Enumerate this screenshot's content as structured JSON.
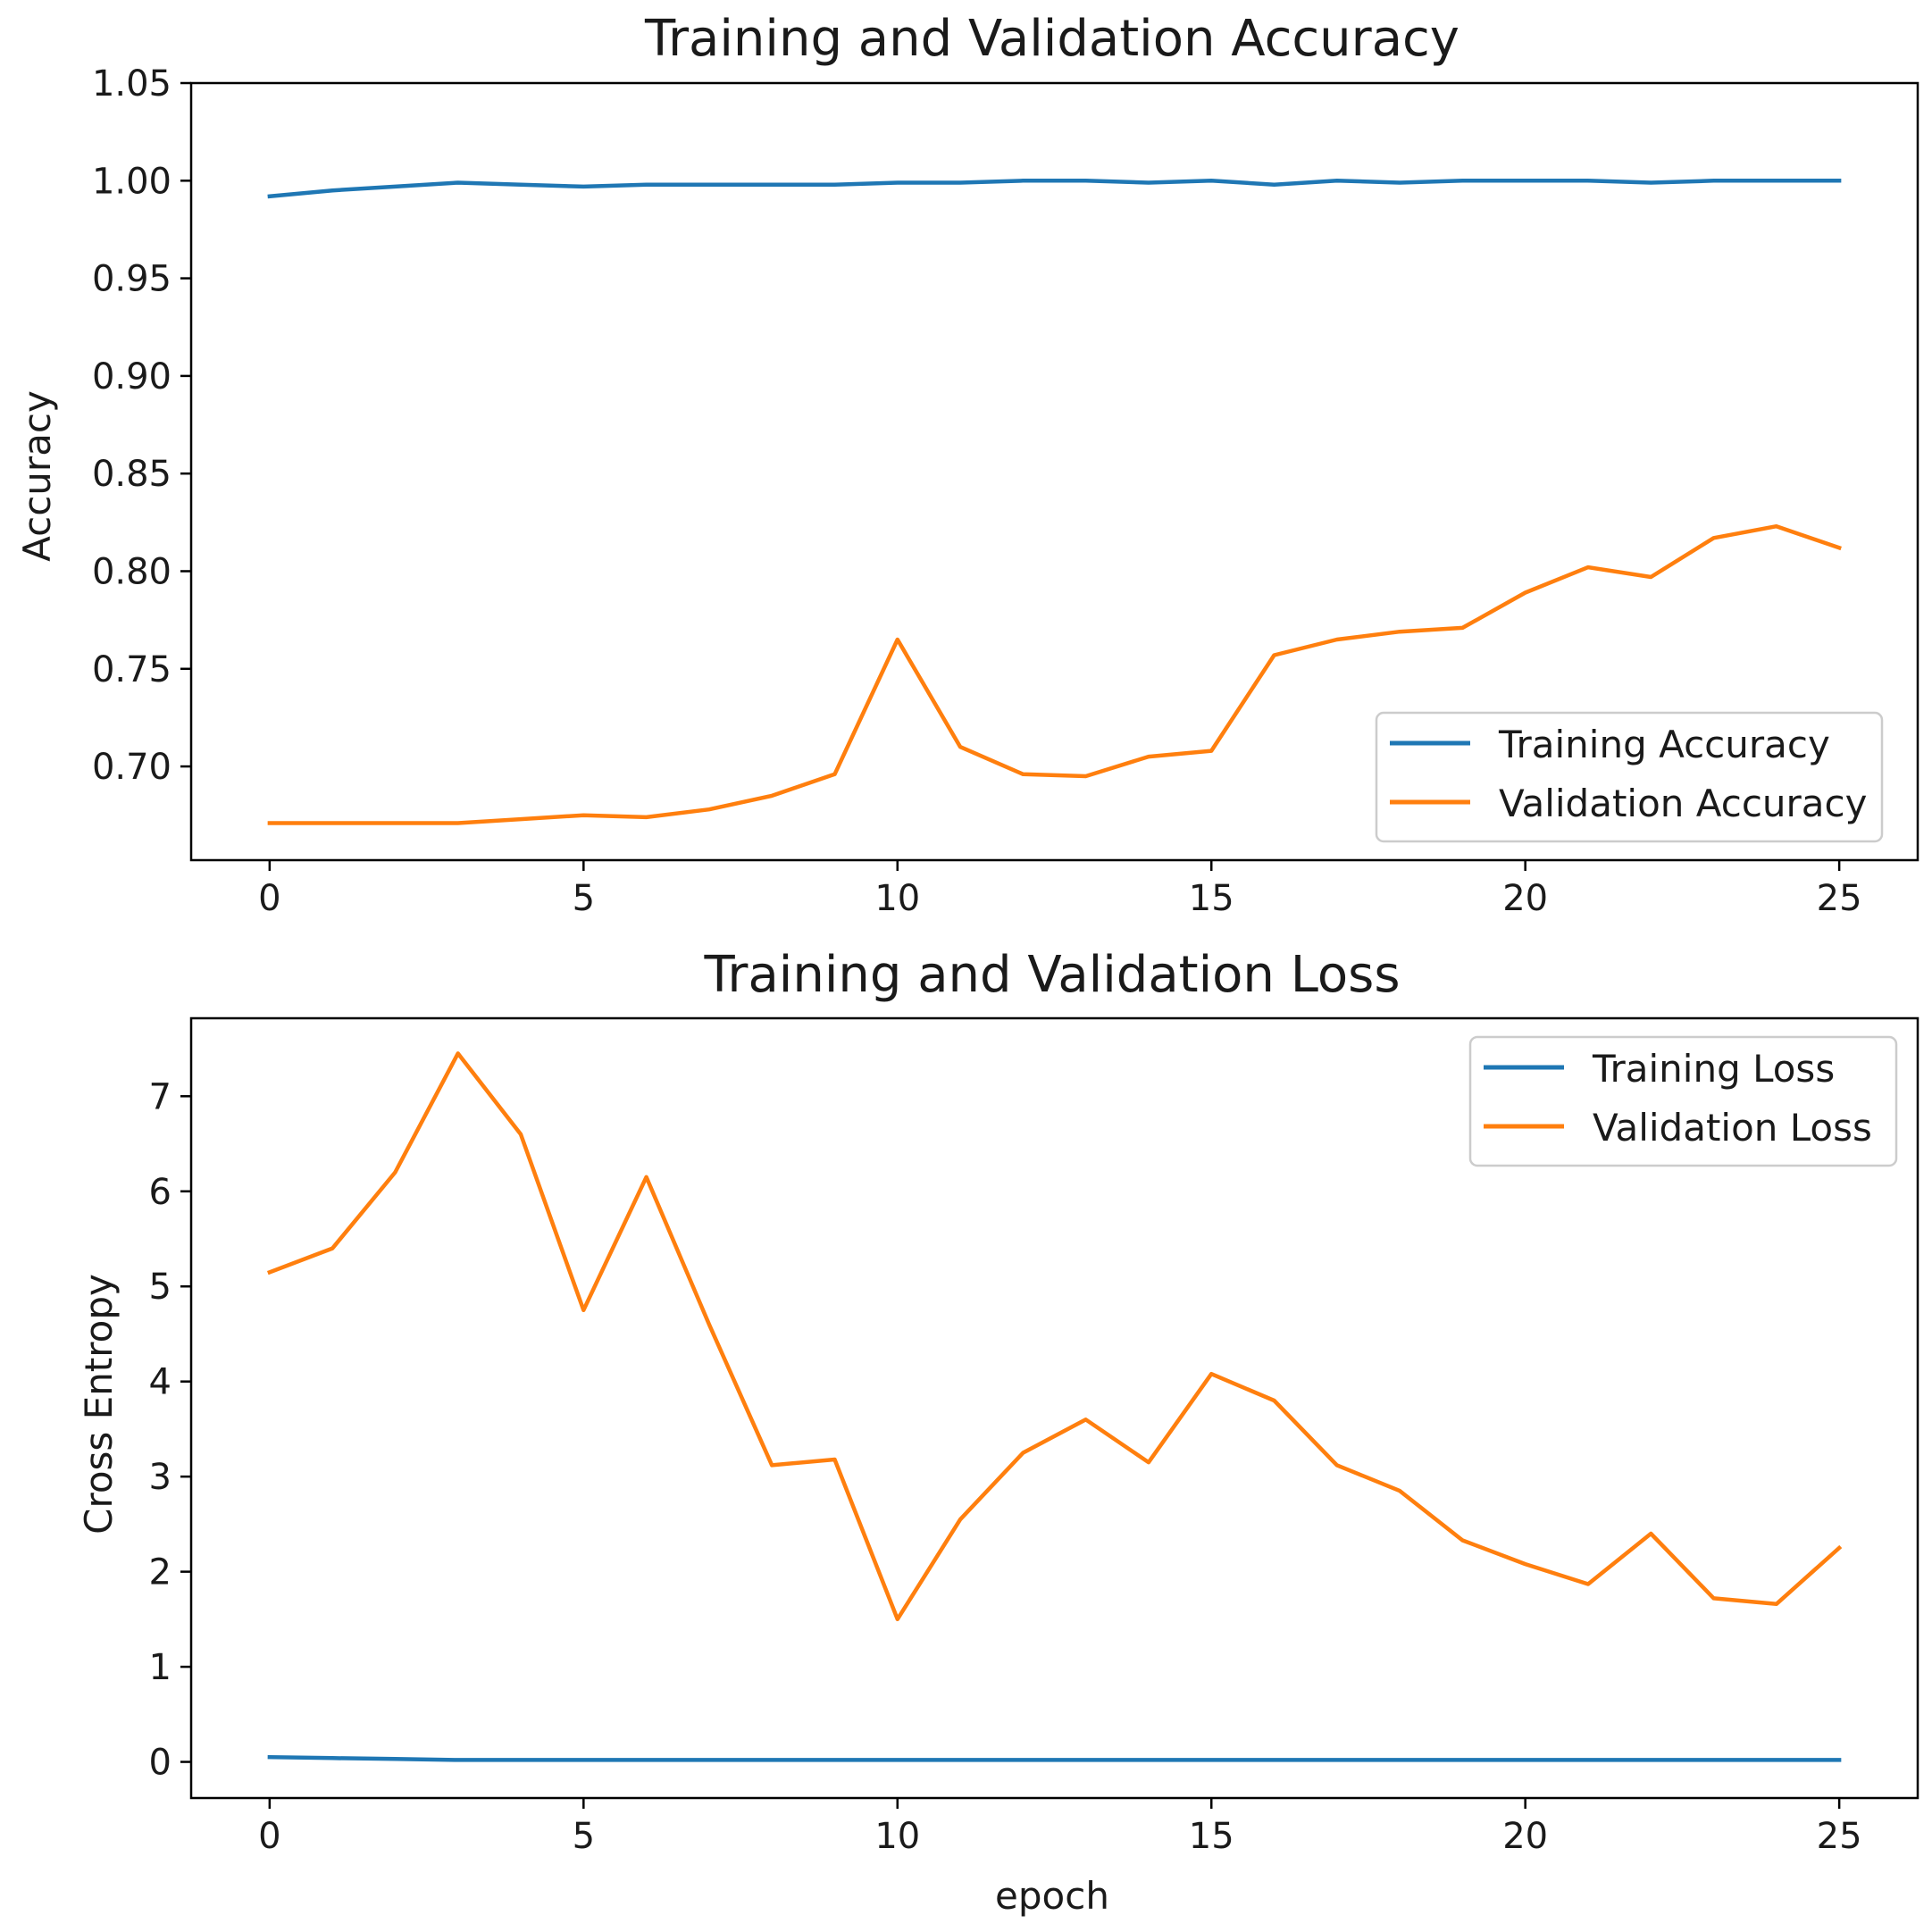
{
  "colors": {
    "training": "#1f77b4",
    "validation": "#ff7f0e",
    "axis": "#000000",
    "legend_border": "#cccccc"
  },
  "chart_data": [
    {
      "type": "line",
      "title": "Training and Validation Accuracy",
      "xlabel": "",
      "ylabel": "Accuracy",
      "xlim": [
        -1.25,
        26.25
      ],
      "ylim": [
        0.652,
        1.05
      ],
      "xticks": [
        0,
        5,
        10,
        15,
        20,
        25
      ],
      "xtick_labels": [
        "0",
        "5",
        "10",
        "15",
        "20",
        "25"
      ],
      "yticks": [
        0.7,
        0.75,
        0.8,
        0.85,
        0.9,
        0.95,
        1.0,
        1.05
      ],
      "ytick_labels": [
        "0.70",
        "0.75",
        "0.80",
        "0.85",
        "0.90",
        "0.95",
        "1.00",
        "1.05"
      ],
      "legend_position": "lower-right",
      "x": [
        0,
        1,
        2,
        3,
        4,
        5,
        6,
        7,
        8,
        9,
        10,
        11,
        12,
        13,
        14,
        15,
        16,
        17,
        18,
        19,
        20,
        21,
        22,
        23,
        24,
        25
      ],
      "series": [
        {
          "name": "Training Accuracy",
          "color_key": "training",
          "values": [
            0.992,
            0.995,
            0.997,
            0.999,
            0.998,
            0.997,
            0.998,
            0.998,
            0.998,
            0.998,
            0.999,
            0.999,
            1.0,
            1.0,
            0.999,
            1.0,
            0.998,
            1.0,
            0.999,
            1.0,
            1.0,
            1.0,
            0.999,
            1.0,
            1.0,
            1.0
          ]
        },
        {
          "name": "Validation Accuracy",
          "color_key": "validation",
          "values": [
            0.671,
            0.671,
            0.671,
            0.671,
            0.673,
            0.675,
            0.674,
            0.678,
            0.685,
            0.696,
            0.765,
            0.71,
            0.696,
            0.695,
            0.705,
            0.708,
            0.757,
            0.765,
            0.769,
            0.771,
            0.789,
            0.802,
            0.797,
            0.817,
            0.823,
            0.812
          ]
        }
      ]
    },
    {
      "type": "line",
      "title": "Training and Validation Loss",
      "xlabel": "epoch",
      "ylabel": "Cross Entropy",
      "xlim": [
        -1.25,
        26.25
      ],
      "ylim": [
        -0.38,
        7.82
      ],
      "xticks": [
        0,
        5,
        10,
        15,
        20,
        25
      ],
      "xtick_labels": [
        "0",
        "5",
        "10",
        "15",
        "20",
        "25"
      ],
      "yticks": [
        0,
        1,
        2,
        3,
        4,
        5,
        6,
        7
      ],
      "ytick_labels": [
        "0",
        "1",
        "2",
        "3",
        "4",
        "5",
        "6",
        "7"
      ],
      "legend_position": "upper-right",
      "x": [
        0,
        1,
        2,
        3,
        4,
        5,
        6,
        7,
        8,
        9,
        10,
        11,
        12,
        13,
        14,
        15,
        16,
        17,
        18,
        19,
        20,
        21,
        22,
        23,
        24,
        25
      ],
      "series": [
        {
          "name": "Training Loss",
          "color_key": "training",
          "values": [
            0.05,
            0.04,
            0.03,
            0.02,
            0.02,
            0.02,
            0.02,
            0.02,
            0.02,
            0.02,
            0.02,
            0.02,
            0.02,
            0.02,
            0.02,
            0.02,
            0.02,
            0.02,
            0.02,
            0.02,
            0.02,
            0.02,
            0.02,
            0.02,
            0.02,
            0.02
          ]
        },
        {
          "name": "Validation Loss",
          "color_key": "validation",
          "values": [
            5.15,
            5.4,
            6.2,
            7.45,
            6.6,
            4.75,
            6.15,
            4.6,
            3.12,
            3.18,
            1.5,
            2.55,
            3.25,
            3.6,
            3.15,
            4.08,
            3.8,
            3.12,
            2.85,
            2.33,
            2.08,
            1.87,
            2.4,
            1.72,
            1.66,
            2.25
          ]
        }
      ]
    }
  ]
}
